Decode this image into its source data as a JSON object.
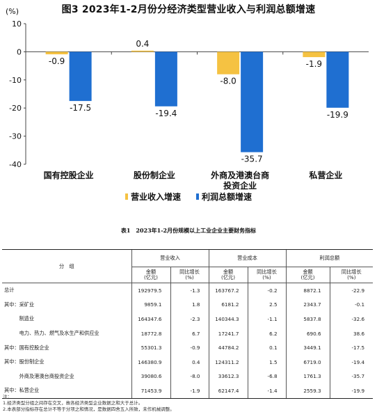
{
  "chart_data": {
    "type": "bar",
    "title": "图3 2023年1-2月份分经济类型营业收入与利润总额增速",
    "ylabel": "(%)",
    "ylim": [
      -40,
      10
    ],
    "yticks": [
      10,
      0,
      -10,
      -20,
      -30,
      -40
    ],
    "categories": [
      "国有控股企业",
      "股份制企业",
      "外商及港澳台商投资企业",
      "私营企业"
    ],
    "category_lines": [
      [
        "国有控股企业"
      ],
      [
        "股份制企业"
      ],
      [
        "外商及港澳台商",
        "投资企业"
      ],
      [
        "私营企业"
      ]
    ],
    "series": [
      {
        "name": "营业收入增速",
        "color": "#f5c242",
        "values": [
          -0.9,
          0.4,
          -8.0,
          -1.9
        ],
        "labels": [
          "-0.9",
          "0.4",
          "-8.0",
          "-1.9"
        ]
      },
      {
        "name": "利润总额增速",
        "color": "#1f6fd1",
        "values": [
          -17.5,
          -19.4,
          -35.7,
          -19.9
        ],
        "labels": [
          "-17.5",
          "-19.4",
          "-35.7",
          "-19.9"
        ]
      }
    ],
    "legend_position": "bottom"
  },
  "table": {
    "title": "表1　2023年1-2月份规模以上工业企业主要财务指标",
    "group_header": "分　组",
    "col_groups": [
      "营业收入",
      "营业成本",
      "利润总额"
    ],
    "sub_headers": [
      "金额\n(亿元)",
      "同比增长\n(%)"
    ],
    "rows": [
      {
        "label": "总计",
        "values": [
          "192979.5",
          "-1.3",
          "163767.2",
          "-0.2",
          "8872.1",
          "-22.9"
        ]
      },
      {
        "label": "其中：采矿业",
        "values": [
          "9859.1",
          "1.8",
          "6181.2",
          "2.5",
          "2343.7",
          "-0.1"
        ]
      },
      {
        "label": "　　　制造业",
        "values": [
          "164347.6",
          "-2.3",
          "140344.3",
          "-1.1",
          "5837.8",
          "-32.6"
        ]
      },
      {
        "label": "　　　电力、热力、燃气及水生产和供应业",
        "values": [
          "18772.8",
          "6.7",
          "17241.7",
          "6.2",
          "690.6",
          "38.6"
        ]
      },
      {
        "label": "其中：国有控股企业",
        "values": [
          "55301.3",
          "-0.9",
          "44784.2",
          "0.1",
          "3449.1",
          "-17.5"
        ]
      },
      {
        "label": "其中：股份制企业",
        "values": [
          "146380.9",
          "0.4",
          "124311.2",
          "1.5",
          "6719.0",
          "-19.4"
        ]
      },
      {
        "label": "　　　外商及港澳台商投资企业",
        "values": [
          "39080.6",
          "-8.0",
          "33612.3",
          "-6.8",
          "1761.3",
          "-35.7"
        ]
      },
      {
        "label": "其中：私营企业",
        "values": [
          "71453.9",
          "-1.9",
          "62147.4",
          "-1.4",
          "2559.3",
          "-19.9"
        ]
      }
    ],
    "notes": [
      "注：",
      "1.经济类型分组之间存在交叉，故各经济类型企业数据之和大于总计。",
      "2.本表部分指标存在总计不等于分项之和情况，是数据四舍五入所致，未作机械调整。"
    ]
  }
}
